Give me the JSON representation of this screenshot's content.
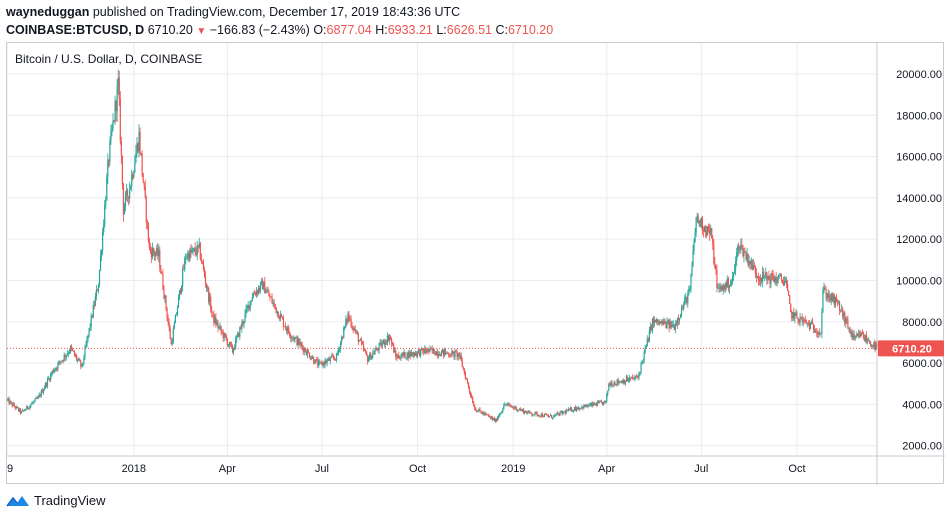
{
  "header": {
    "author": "wayneduggan",
    "published_text": "published on TradingView.com, December 17, 2019 18:43:36 UTC",
    "symbol": "COINBASE:BTCUSD, D",
    "last": "6710.20",
    "change": "−166.83 (−2.43%)",
    "o_label": "O:",
    "o_value": "6877.04",
    "h_label": "H:",
    "h_value": "6933.21",
    "l_label": "L:",
    "l_value": "6626.51",
    "c_label": "C:",
    "c_value": "6710.20"
  },
  "footer": {
    "brand": "TradingView"
  },
  "colors": {
    "up": "#26a69a",
    "down": "#ef5350",
    "grid": "#e9ecf1",
    "text": "#131722",
    "price_line": "#ef5350"
  },
  "chart_data": {
    "type": "candlestick",
    "title": "Bitcoin / U.S. Dollar, D, COINBASE",
    "xlabel": "",
    "ylabel": "",
    "ylim": [
      1500,
      21500
    ],
    "x_range": [
      "2017-09-01",
      "2019-12-17"
    ],
    "y_ticks": [
      "2000.00",
      "4000.00",
      "6000.00",
      "8000.00",
      "10000.00",
      "12000.00",
      "14000.00",
      "16000.00",
      "18000.00",
      "20000.00"
    ],
    "x_ticks": [
      {
        "label": "9",
        "date": "2017-09-01"
      },
      {
        "label": "2018",
        "date": "2018-01-01"
      },
      {
        "label": "Apr",
        "date": "2018-04-01"
      },
      {
        "label": "Jul",
        "date": "2018-07-01"
      },
      {
        "label": "Oct",
        "date": "2018-10-01"
      },
      {
        "label": "2019",
        "date": "2019-01-01"
      },
      {
        "label": "Apr",
        "date": "2019-04-01"
      },
      {
        "label": "Jul",
        "date": "2019-07-01"
      },
      {
        "label": "Oct",
        "date": "2019-10-01"
      }
    ],
    "last_price": 6710.2,
    "last_price_label": "6710.20",
    "grid": true,
    "price_path": [
      [
        "2017-09-01",
        4200
      ],
      [
        "2017-09-15",
        3600
      ],
      [
        "2017-10-01",
        4300
      ],
      [
        "2017-10-15",
        5600
      ],
      [
        "2017-11-01",
        6700
      ],
      [
        "2017-11-12",
        5800
      ],
      [
        "2017-11-28",
        9900
      ],
      [
        "2017-12-08",
        16000
      ],
      [
        "2017-12-17",
        19500
      ],
      [
        "2017-12-22",
        13500
      ],
      [
        "2017-12-28",
        14500
      ],
      [
        "2018-01-06",
        17000
      ],
      [
        "2018-01-16",
        11500
      ],
      [
        "2018-01-25",
        11200
      ],
      [
        "2018-02-06",
        6900
      ],
      [
        "2018-02-20",
        11200
      ],
      [
        "2018-03-05",
        11500
      ],
      [
        "2018-03-18",
        8200
      ],
      [
        "2018-04-06",
        6600
      ],
      [
        "2018-04-25",
        9300
      ],
      [
        "2018-05-05",
        9800
      ],
      [
        "2018-05-30",
        7500
      ],
      [
        "2018-06-28",
        5900
      ],
      [
        "2018-07-15",
        6300
      ],
      [
        "2018-07-26",
        8300
      ],
      [
        "2018-08-14",
        6200
      ],
      [
        "2018-09-04",
        7300
      ],
      [
        "2018-09-10",
        6300
      ],
      [
        "2018-10-10",
        6600
      ],
      [
        "2018-11-10",
        6400
      ],
      [
        "2018-11-25",
        3800
      ],
      [
        "2018-12-15",
        3200
      ],
      [
        "2018-12-24",
        4000
      ],
      [
        "2019-01-15",
        3600
      ],
      [
        "2019-02-07",
        3400
      ],
      [
        "2019-03-01",
        3800
      ],
      [
        "2019-03-31",
        4100
      ],
      [
        "2019-04-03",
        5000
      ],
      [
        "2019-05-01",
        5300
      ],
      [
        "2019-05-15",
        8000
      ],
      [
        "2019-06-05",
        7800
      ],
      [
        "2019-06-20",
        9500
      ],
      [
        "2019-06-26",
        13000
      ],
      [
        "2019-07-10",
        12300
      ],
      [
        "2019-07-17",
        9500
      ],
      [
        "2019-07-31",
        10000
      ],
      [
        "2019-08-06",
        11800
      ],
      [
        "2019-08-25",
        10200
      ],
      [
        "2019-09-20",
        10000
      ],
      [
        "2019-09-25",
        8400
      ],
      [
        "2019-10-24",
        7500
      ],
      [
        "2019-10-26",
        9500
      ],
      [
        "2019-11-10",
        8800
      ],
      [
        "2019-11-25",
        7100
      ],
      [
        "2019-12-01",
        7400
      ],
      [
        "2019-12-17",
        6710
      ]
    ]
  }
}
